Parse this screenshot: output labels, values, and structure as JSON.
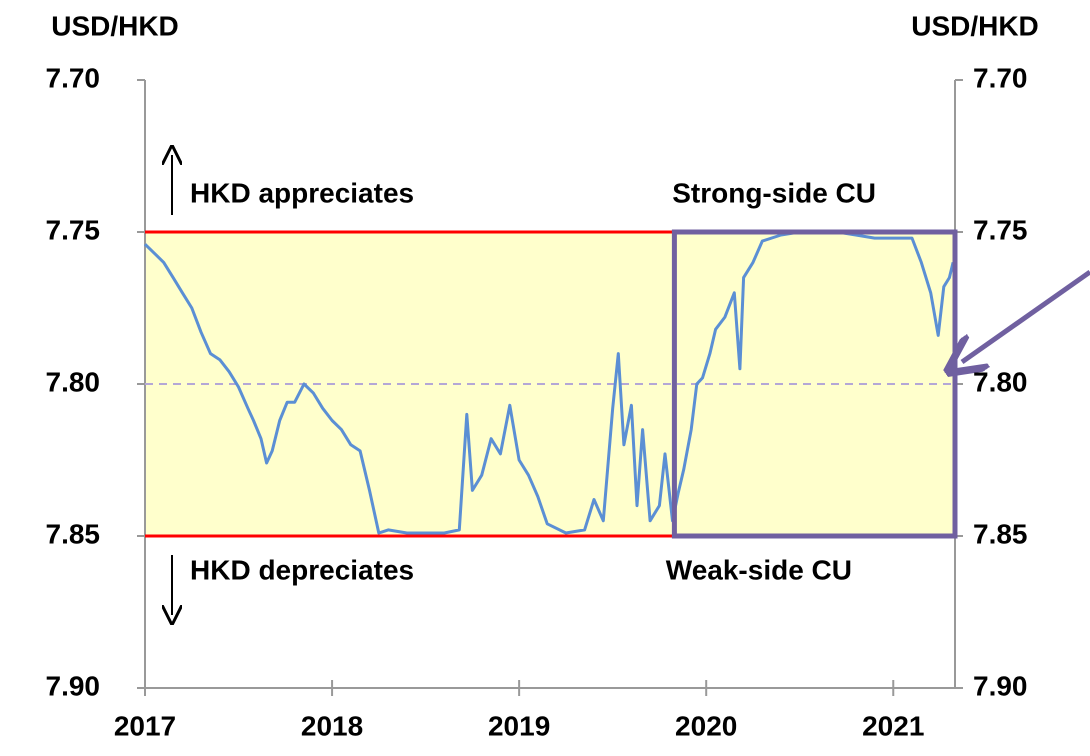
{
  "chart_data": {
    "type": "line",
    "y_label": "USD/HKD",
    "y2_label": "USD/HKD",
    "annotations": [
      "HKD appreciates",
      "HKD depreciates",
      "Strong-side CU",
      "Weak-side CU"
    ],
    "xlim": [
      2017,
      2021.33
    ],
    "xticks": [
      2017,
      2018,
      2019,
      2020,
      2021
    ],
    "ylim": [
      7.7,
      7.9
    ],
    "y_inverted": true,
    "yticks": [
      {
        "value": 7.7,
        "label": "7.70"
      },
      7.75,
      {
        "value": 7.8,
        "label": "7.80"
      },
      7.85,
      {
        "value": 7.9,
        "label": "7.90"
      }
    ],
    "y2lim": [
      7.7,
      7.9
    ],
    "y2ticks": [
      {
        "value": 7.7,
        "label": "7.70"
      },
      7.75,
      {
        "value": 7.8,
        "label": "7.80"
      },
      7.85,
      {
        "value": 7.9,
        "label": "7.90"
      }
    ],
    "band": {
      "from": 7.75,
      "to": 7.85,
      "color": "#ffffcc"
    },
    "reference_lines": [
      {
        "value": 7.75,
        "color": "#ff0000",
        "dashed": false
      },
      {
        "value": 7.8,
        "color": "#b4a7d6",
        "dashed": true
      },
      {
        "value": 7.85,
        "color": "#ff0000",
        "dashed": false
      }
    ],
    "highlight_box": {
      "x": [
        2019.83,
        2021.33
      ],
      "y": [
        7.75,
        7.85
      ],
      "color": "#7060a0"
    },
    "series": [
      {
        "name": "USD/HKD",
        "color": "#5b8fd4",
        "x": [
          2017.0,
          2017.05,
          2017.1,
          2017.15,
          2017.2,
          2017.25,
          2017.3,
          2017.35,
          2017.4,
          2017.45,
          2017.5,
          2017.55,
          2017.58,
          2017.62,
          2017.65,
          2017.68,
          2017.72,
          2017.76,
          2017.8,
          2017.85,
          2017.9,
          2017.95,
          2018.0,
          2018.05,
          2018.1,
          2018.15,
          2018.2,
          2018.25,
          2018.3,
          2018.4,
          2018.5,
          2018.6,
          2018.68,
          2018.72,
          2018.75,
          2018.8,
          2018.85,
          2018.9,
          2018.95,
          2019.0,
          2019.05,
          2019.1,
          2019.15,
          2019.25,
          2019.35,
          2019.4,
          2019.45,
          2019.5,
          2019.53,
          2019.56,
          2019.6,
          2019.63,
          2019.66,
          2019.7,
          2019.75,
          2019.78,
          2019.82,
          2019.85,
          2019.88,
          2019.92,
          2019.95,
          2019.98,
          2020.02,
          2020.05,
          2020.1,
          2020.15,
          2020.18,
          2020.2,
          2020.25,
          2020.3,
          2020.4,
          2020.5,
          2020.6,
          2020.7,
          2020.8,
          2020.9,
          2021.0,
          2021.1,
          2021.15,
          2021.2,
          2021.24,
          2021.27,
          2021.3,
          2021.32
        ],
        "values": [
          7.754,
          7.757,
          7.76,
          7.765,
          7.77,
          7.775,
          7.783,
          7.79,
          7.792,
          7.796,
          7.801,
          7.808,
          7.812,
          7.818,
          7.826,
          7.822,
          7.812,
          7.806,
          7.806,
          7.8,
          7.803,
          7.808,
          7.812,
          7.815,
          7.82,
          7.822,
          7.835,
          7.849,
          7.848,
          7.849,
          7.849,
          7.849,
          7.848,
          7.81,
          7.835,
          7.83,
          7.818,
          7.823,
          7.807,
          7.825,
          7.83,
          7.837,
          7.846,
          7.849,
          7.848,
          7.838,
          7.845,
          7.808,
          7.79,
          7.82,
          7.807,
          7.84,
          7.815,
          7.845,
          7.84,
          7.823,
          7.845,
          7.836,
          7.828,
          7.815,
          7.8,
          7.798,
          7.79,
          7.782,
          7.778,
          7.77,
          7.795,
          7.765,
          7.76,
          7.753,
          7.751,
          7.75,
          7.75,
          7.75,
          7.751,
          7.752,
          7.752,
          7.752,
          7.76,
          7.77,
          7.784,
          7.768,
          7.765,
          7.76
        ]
      }
    ]
  }
}
